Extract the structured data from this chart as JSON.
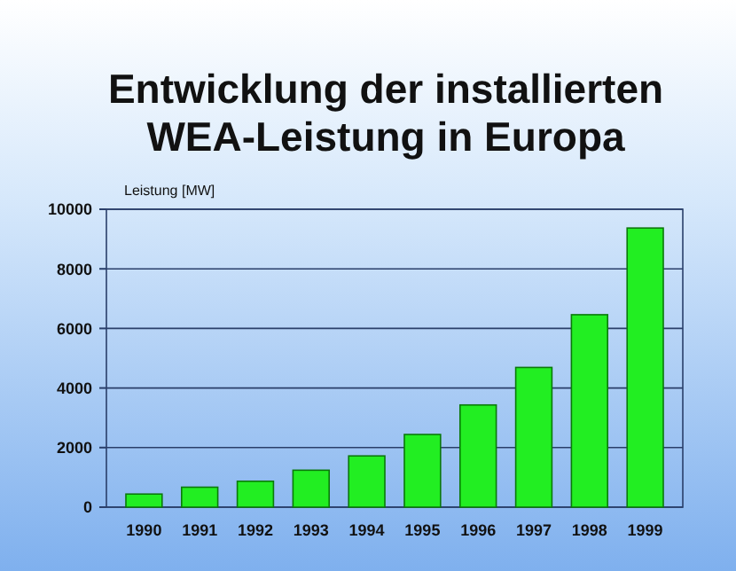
{
  "chart_data": {
    "type": "bar",
    "title": "Entwicklung der installierten\nWEA-Leistung in Europa",
    "ylabel": "Leistung [MW]",
    "categories": [
      "1990",
      "1991",
      "1992",
      "1993",
      "1994",
      "1995",
      "1996",
      "1997",
      "1998",
      "1999"
    ],
    "values": [
      440,
      670,
      870,
      1240,
      1720,
      2440,
      3430,
      4690,
      6460,
      9370
    ],
    "color": "#22ee22",
    "ylim": [
      0,
      10000
    ],
    "yticks": [
      0,
      2000,
      4000,
      6000,
      8000,
      10000
    ],
    "grid": "y"
  }
}
